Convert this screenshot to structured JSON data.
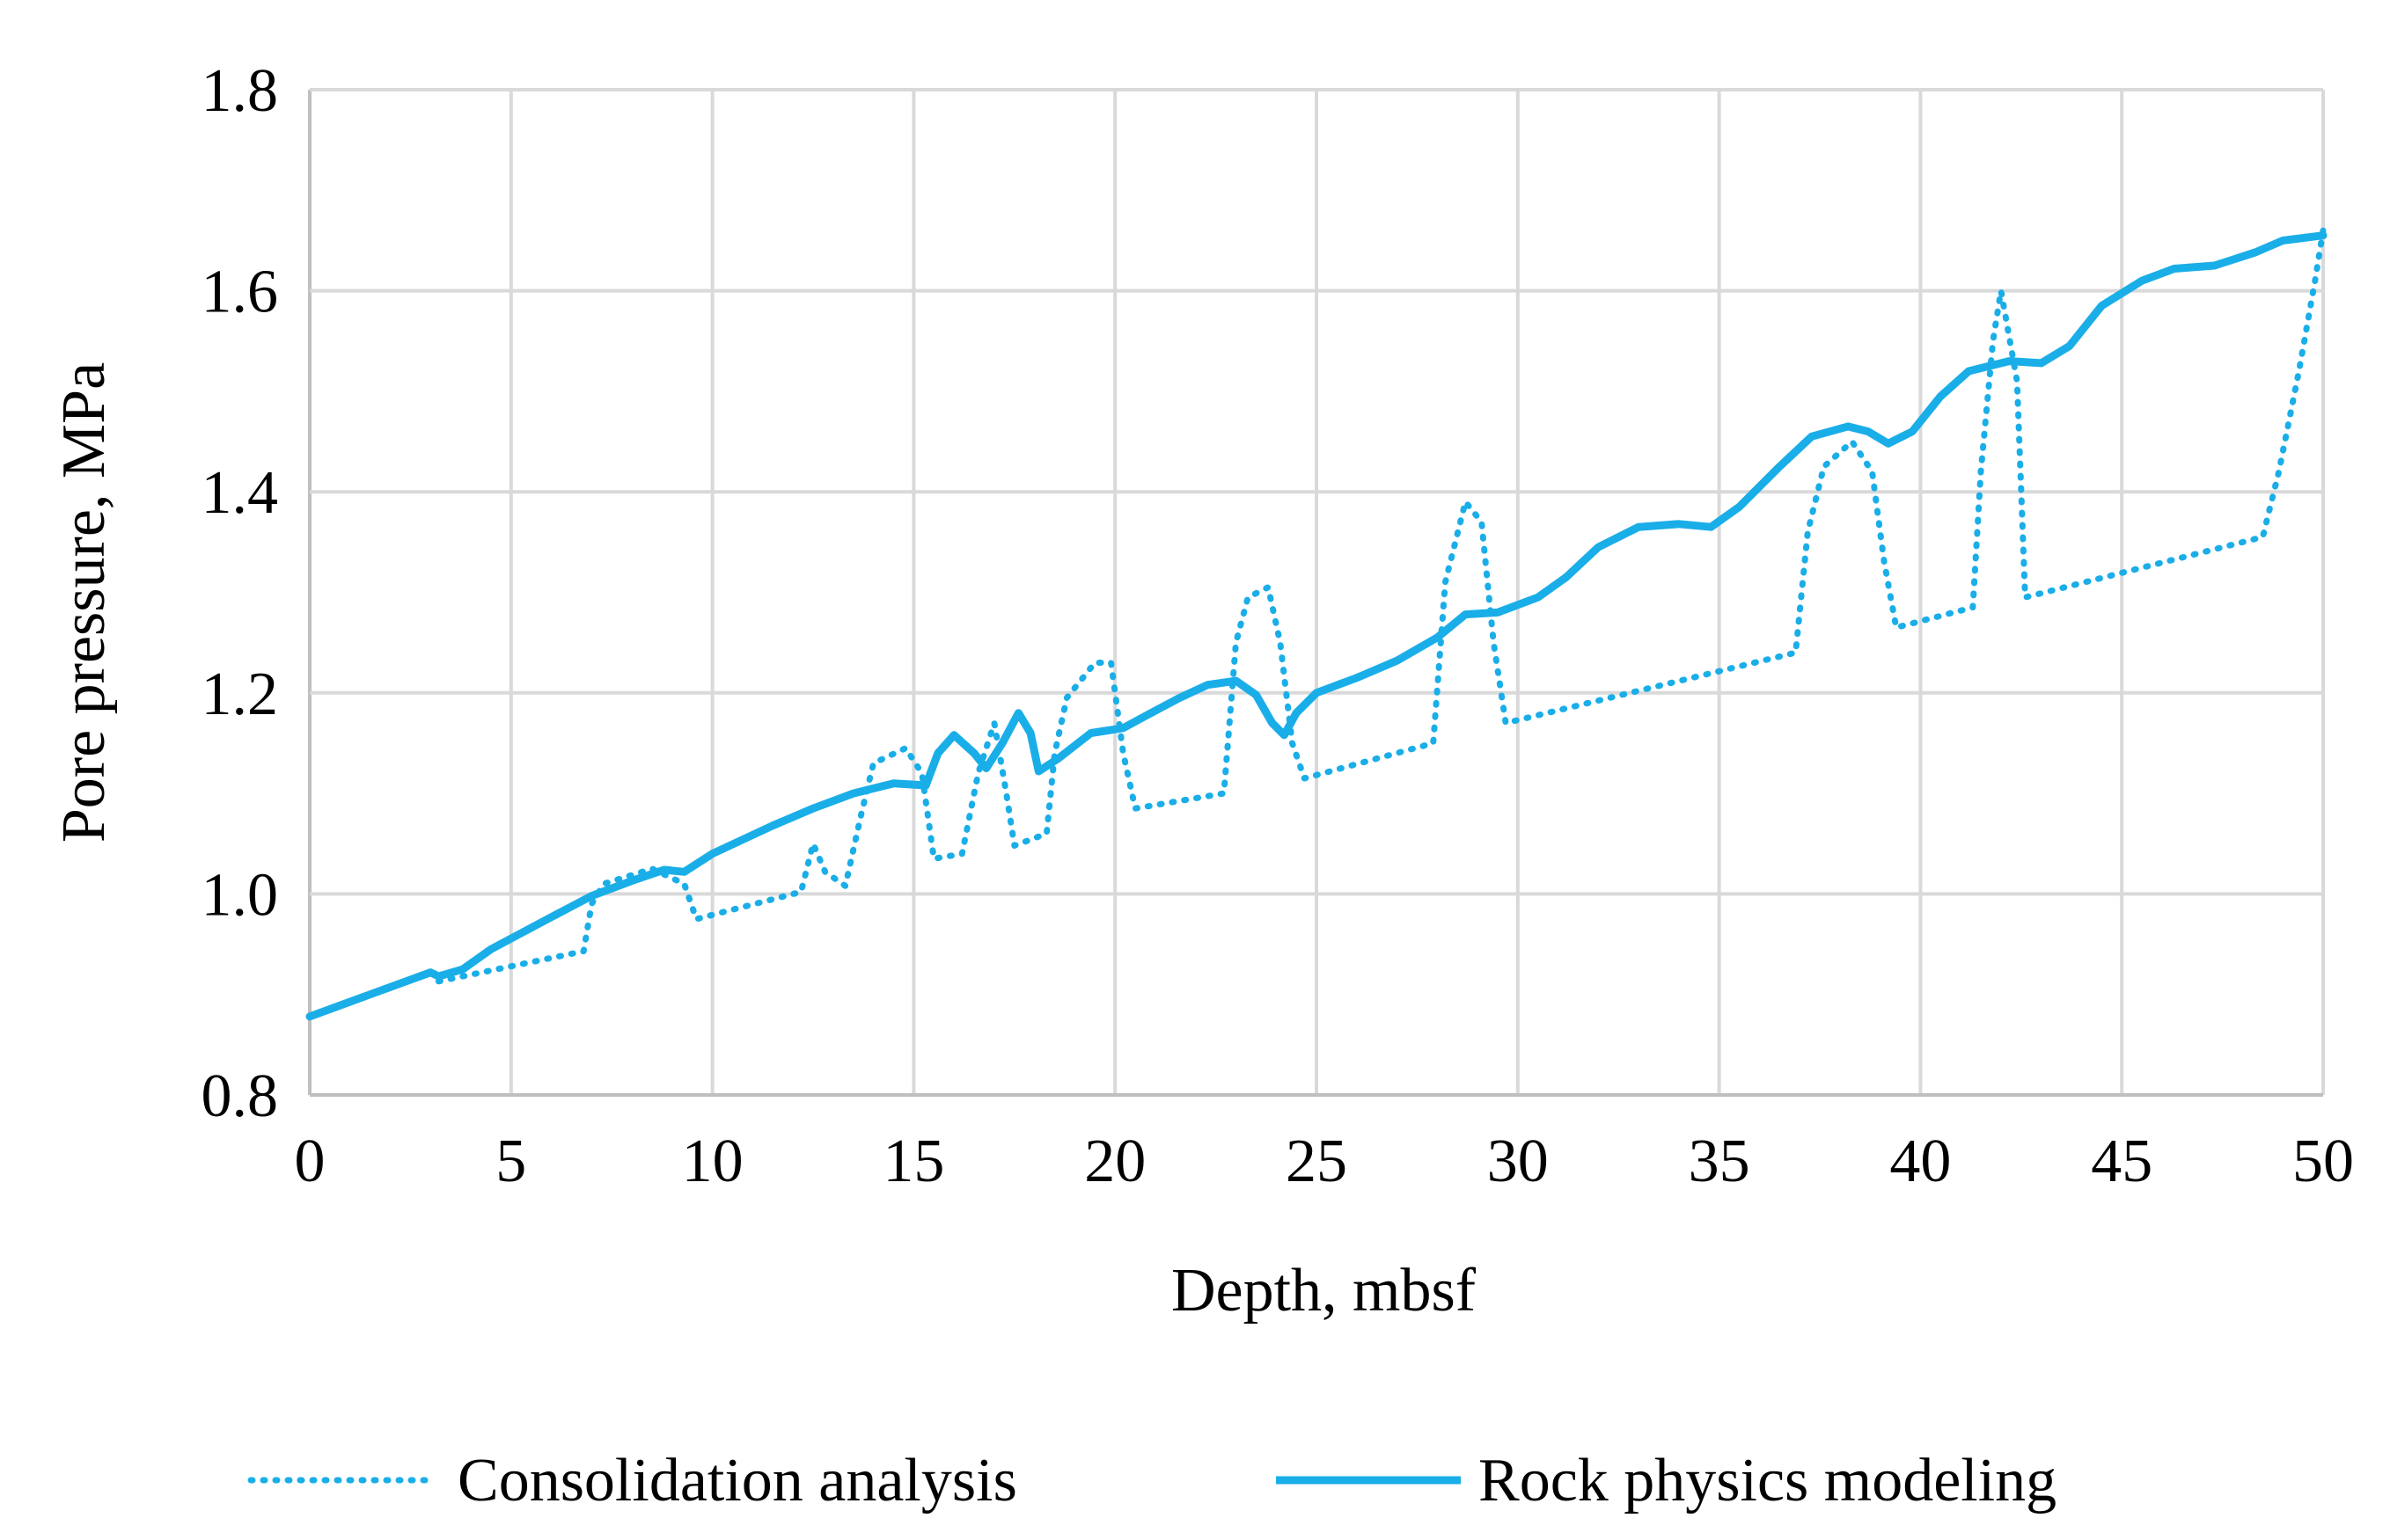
{
  "chart_data": {
    "type": "line",
    "title": "",
    "xlabel": "Depth, mbsf",
    "ylabel": "Pore pressure, MPa",
    "xlim": [
      0,
      50
    ],
    "ylim": [
      0.8,
      1.8
    ],
    "x_ticks": [
      0,
      5,
      10,
      15,
      20,
      25,
      30,
      35,
      40,
      45,
      50
    ],
    "y_ticks": [
      0.8,
      1.0,
      1.2,
      1.4,
      1.6,
      1.8
    ],
    "x_tick_labels": [
      "0",
      "5",
      "10",
      "15",
      "20",
      "25",
      "30",
      "35",
      "40",
      "45",
      "50"
    ],
    "y_tick_labels": [
      "0.8",
      "1.0",
      "1.2",
      "1.4",
      "1.6",
      "1.8"
    ],
    "grid": true,
    "legend_position": "bottom",
    "color": "#1aaee8",
    "series": [
      {
        "name": "Consolidation analysis",
        "style": "dotted",
        "points": [
          [
            3.2,
            0.913
          ],
          [
            6.8,
            0.943
          ],
          [
            7.0,
            0.99
          ],
          [
            7.3,
            1.01
          ],
          [
            8.5,
            1.025
          ],
          [
            9.3,
            1.01
          ],
          [
            9.6,
            0.975
          ],
          [
            12.2,
            1.002
          ],
          [
            12.5,
            1.05
          ],
          [
            12.8,
            1.022
          ],
          [
            13.3,
            1.008
          ],
          [
            13.7,
            1.08
          ],
          [
            14.0,
            1.13
          ],
          [
            14.8,
            1.145
          ],
          [
            15.2,
            1.12
          ],
          [
            15.5,
            1.035
          ],
          [
            16.2,
            1.04
          ],
          [
            16.6,
            1.12
          ],
          [
            17.0,
            1.17
          ],
          [
            17.3,
            1.1
          ],
          [
            17.5,
            1.048
          ],
          [
            18.3,
            1.06
          ],
          [
            18.5,
            1.14
          ],
          [
            18.8,
            1.195
          ],
          [
            19.5,
            1.23
          ],
          [
            19.9,
            1.23
          ],
          [
            20.2,
            1.14
          ],
          [
            20.5,
            1.085
          ],
          [
            22.7,
            1.1
          ],
          [
            23.0,
            1.25
          ],
          [
            23.3,
            1.295
          ],
          [
            23.8,
            1.305
          ],
          [
            24.1,
            1.25
          ],
          [
            24.4,
            1.15
          ],
          [
            24.7,
            1.115
          ],
          [
            27.9,
            1.15
          ],
          [
            28.2,
            1.31
          ],
          [
            28.7,
            1.39
          ],
          [
            29.1,
            1.37
          ],
          [
            29.4,
            1.25
          ],
          [
            29.7,
            1.17
          ],
          [
            36.9,
            1.24
          ],
          [
            37.2,
            1.36
          ],
          [
            37.6,
            1.425
          ],
          [
            38.3,
            1.45
          ],
          [
            38.8,
            1.42
          ],
          [
            39.1,
            1.33
          ],
          [
            39.4,
            1.265
          ],
          [
            41.3,
            1.285
          ],
          [
            41.5,
            1.42
          ],
          [
            41.8,
            1.55
          ],
          [
            42.0,
            1.6
          ],
          [
            42.4,
            1.51
          ],
          [
            42.6,
            1.295
          ],
          [
            48.5,
            1.355
          ],
          [
            48.9,
            1.42
          ],
          [
            49.4,
            1.52
          ],
          [
            49.8,
            1.61
          ],
          [
            50.0,
            1.66
          ]
        ]
      },
      {
        "name": "Rock physics modeling",
        "style": "solid",
        "points": [
          [
            0,
            0.878
          ],
          [
            1.5,
            0.9
          ],
          [
            3.0,
            0.922
          ],
          [
            3.2,
            0.918
          ],
          [
            3.8,
            0.925
          ],
          [
            4.5,
            0.945
          ],
          [
            6.0,
            0.977
          ],
          [
            7.0,
            0.998
          ],
          [
            8.0,
            1.013
          ],
          [
            8.8,
            1.024
          ],
          [
            9.3,
            1.022
          ],
          [
            10.0,
            1.04
          ],
          [
            11.5,
            1.068
          ],
          [
            12.5,
            1.085
          ],
          [
            13.5,
            1.1
          ],
          [
            14.5,
            1.11
          ],
          [
            15.3,
            1.108
          ],
          [
            15.6,
            1.14
          ],
          [
            16.0,
            1.158
          ],
          [
            16.5,
            1.14
          ],
          [
            16.8,
            1.125
          ],
          [
            17.2,
            1.15
          ],
          [
            17.6,
            1.18
          ],
          [
            17.9,
            1.16
          ],
          [
            18.1,
            1.122
          ],
          [
            18.6,
            1.135
          ],
          [
            19.4,
            1.16
          ],
          [
            20.2,
            1.165
          ],
          [
            20.8,
            1.178
          ],
          [
            21.6,
            1.195
          ],
          [
            22.3,
            1.208
          ],
          [
            23.0,
            1.212
          ],
          [
            23.5,
            1.198
          ],
          [
            23.9,
            1.17
          ],
          [
            24.2,
            1.158
          ],
          [
            24.5,
            1.18
          ],
          [
            25.0,
            1.2
          ],
          [
            26.0,
            1.215
          ],
          [
            27.0,
            1.232
          ],
          [
            28.0,
            1.255
          ],
          [
            28.7,
            1.278
          ],
          [
            29.5,
            1.28
          ],
          [
            30.5,
            1.295
          ],
          [
            31.2,
            1.315
          ],
          [
            32.0,
            1.345
          ],
          [
            33.0,
            1.365
          ],
          [
            34.0,
            1.368
          ],
          [
            34.8,
            1.365
          ],
          [
            35.5,
            1.385
          ],
          [
            36.5,
            1.425
          ],
          [
            37.3,
            1.455
          ],
          [
            38.2,
            1.465
          ],
          [
            38.7,
            1.46
          ],
          [
            39.2,
            1.448
          ],
          [
            39.8,
            1.46
          ],
          [
            40.5,
            1.495
          ],
          [
            41.2,
            1.52
          ],
          [
            42.2,
            1.53
          ],
          [
            43.0,
            1.528
          ],
          [
            43.7,
            1.545
          ],
          [
            44.5,
            1.585
          ],
          [
            45.5,
            1.61
          ],
          [
            46.3,
            1.622
          ],
          [
            47.3,
            1.625
          ],
          [
            48.3,
            1.638
          ],
          [
            49.0,
            1.65
          ],
          [
            50.0,
            1.655
          ]
        ]
      }
    ]
  }
}
